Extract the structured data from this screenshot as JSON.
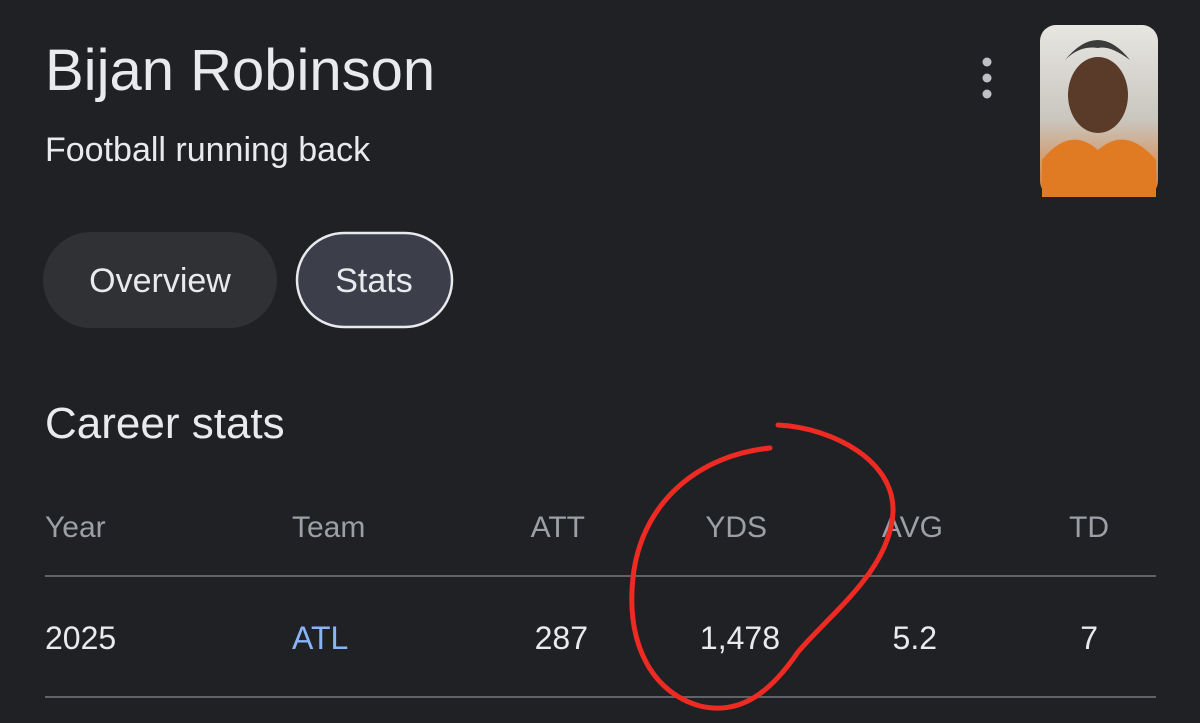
{
  "header": {
    "title": "Bijan Robinson",
    "subtitle": "Football running back"
  },
  "tabs": [
    "Overview",
    "Stats"
  ],
  "stats": {
    "title": "Career stats"
  },
  "table": {
    "columns": [
      "Year",
      "Team",
      "ATT",
      "YDS",
      "AVG",
      "TD"
    ],
    "rows": [
      [
        "2025",
        "ATL",
        "287",
        "1,478",
        "5.2",
        "7"
      ]
    ]
  }
}
